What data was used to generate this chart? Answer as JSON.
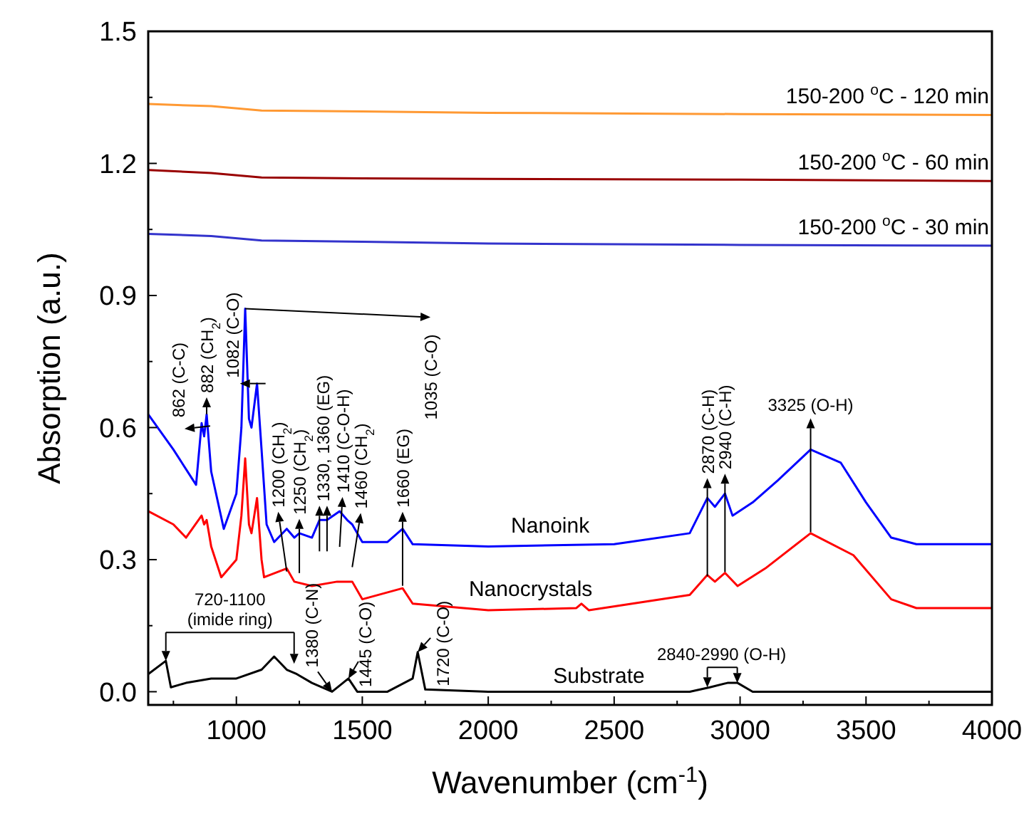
{
  "chart_data": {
    "type": "line",
    "xlabel": "Wavenumber (cm$^{-1}$)",
    "ylabel": "Absorption (a.u.)",
    "xlim": [
      650,
      4000
    ],
    "ylim": [
      -0.03,
      1.5
    ],
    "xticks": [
      1000,
      1500,
      2000,
      2500,
      3000,
      3500,
      4000
    ],
    "yticks": [
      {
        "value": 0,
        "label": "0.0"
      },
      0.3,
      0.6,
      0.9,
      1.2,
      1.5
    ],
    "grid": false,
    "marker": "none",
    "line_style": "solid",
    "series": [
      {
        "name": "150-200 $^{o}$C - 120 min",
        "color": "#ff9933",
        "x": [
          650,
          900,
          1100,
          1500,
          2000,
          3000,
          4000
        ],
        "values": [
          1.335,
          1.33,
          1.32,
          1.318,
          1.315,
          1.312,
          1.31
        ]
      },
      {
        "name": "150-200 $^{o}$C - 60 min",
        "color": "#990000",
        "x": [
          650,
          900,
          1100,
          1500,
          2000,
          3000,
          4000
        ],
        "values": [
          1.185,
          1.178,
          1.168,
          1.166,
          1.165,
          1.163,
          1.16
        ]
      },
      {
        "name": "150-200 $^{o}$C - 30 min",
        "color": "#3333cc",
        "x": [
          650,
          900,
          1100,
          1500,
          2000,
          3000,
          4000
        ],
        "values": [
          1.04,
          1.035,
          1.025,
          1.022,
          1.018,
          1.015,
          1.013
        ]
      },
      {
        "name": "Nanoink",
        "color": "#0000ff",
        "x": [
          650,
          750,
          840,
          862,
          872,
          882,
          900,
          950,
          1000,
          1020,
          1035,
          1050,
          1060,
          1082,
          1100,
          1120,
          1150,
          1200,
          1230,
          1250,
          1300,
          1330,
          1360,
          1410,
          1440,
          1460,
          1500,
          1600,
          1660,
          1700,
          2000,
          2500,
          2800,
          2870,
          2900,
          2940,
          2970,
          3050,
          3150,
          3280,
          3400,
          3500,
          3600,
          3700,
          4000
        ],
        "values": [
          0.63,
          0.55,
          0.47,
          0.61,
          0.58,
          0.63,
          0.5,
          0.37,
          0.45,
          0.6,
          0.87,
          0.62,
          0.6,
          0.7,
          0.55,
          0.38,
          0.34,
          0.37,
          0.35,
          0.36,
          0.35,
          0.39,
          0.39,
          0.41,
          0.39,
          0.38,
          0.34,
          0.34,
          0.37,
          0.335,
          0.33,
          0.335,
          0.36,
          0.44,
          0.42,
          0.45,
          0.4,
          0.43,
          0.48,
          0.55,
          0.52,
          0.43,
          0.35,
          0.335,
          0.335
        ]
      },
      {
        "name": "Nanocrystals",
        "color": "#ff0000",
        "x": [
          650,
          750,
          800,
          862,
          872,
          882,
          900,
          940,
          1000,
          1020,
          1035,
          1050,
          1060,
          1082,
          1100,
          1110,
          1200,
          1230,
          1300,
          1400,
          1460,
          1500,
          1660,
          1700,
          2000,
          2350,
          2370,
          2400,
          2800,
          2870,
          2900,
          2940,
          2990,
          3100,
          3280,
          3450,
          3600,
          3700,
          4000
        ],
        "values": [
          0.41,
          0.38,
          0.35,
          0.4,
          0.38,
          0.39,
          0.33,
          0.26,
          0.3,
          0.4,
          0.53,
          0.38,
          0.36,
          0.44,
          0.3,
          0.26,
          0.28,
          0.25,
          0.24,
          0.25,
          0.25,
          0.21,
          0.235,
          0.2,
          0.185,
          0.19,
          0.2,
          0.185,
          0.22,
          0.265,
          0.25,
          0.27,
          0.24,
          0.28,
          0.36,
          0.31,
          0.21,
          0.19,
          0.19
        ]
      },
      {
        "name": "Substrate",
        "color": "#000000",
        "x": [
          650,
          720,
          740,
          800,
          900,
          1000,
          1100,
          1150,
          1200,
          1240,
          1300,
          1380,
          1445,
          1480,
          1600,
          1700,
          1720,
          1750,
          2000,
          2800,
          2880,
          2950,
          2990,
          3050,
          4000
        ],
        "values": [
          0.04,
          0.07,
          0.01,
          0.02,
          0.03,
          0.03,
          0.05,
          0.08,
          0.05,
          0.04,
          0.02,
          0.0,
          0.03,
          0.0,
          0.0,
          0.03,
          0.09,
          0.005,
          0.0,
          0.0,
          0.01,
          0.02,
          0.02,
          0.0,
          0.0
        ]
      }
    ],
    "annotations": [
      {
        "text": "862 (C-C)",
        "x": 862,
        "y": 0.61
      },
      {
        "text": "882 (CH$_{2}$)",
        "x": 882,
        "y": 0.63
      },
      {
        "text": "1082 (C-O)",
        "x": 1082,
        "y": 0.7
      },
      {
        "text": "1035 (C-O)",
        "x": 1035,
        "y": 0.87
      },
      {
        "text": "1200 (CH$_{2}$)",
        "x": 1200,
        "y": 0.37
      },
      {
        "text": "1250 (CH$_{2}$)",
        "x": 1250,
        "y": 0.36
      },
      {
        "text": "1330, 1360 (EG)",
        "x": 1330,
        "y": 0.39
      },
      {
        "text": "1410 (C-O-H)",
        "x": 1410,
        "y": 0.41
      },
      {
        "text": "1460 (CH$_{2}$)",
        "x": 1460,
        "y": 0.38
      },
      {
        "text": "1660 (EG)",
        "x": 1660,
        "y": 0.37
      },
      {
        "text": "2870 (C-H)",
        "x": 2870,
        "y": 0.44
      },
      {
        "text": "2940 (C-H)",
        "x": 2940,
        "y": 0.45
      },
      {
        "text": "3325 (O-H)",
        "x": 3280,
        "y": 0.55
      },
      {
        "text": "720-1100 (imide ring)",
        "x": 720,
        "y": 0.07
      },
      {
        "text": "1380 (C-N)",
        "x": 1380,
        "y": 0.0
      },
      {
        "text": "1445 (C-O)",
        "x": 1445,
        "y": 0.03
      },
      {
        "text": "1720 (C-O)",
        "x": 1720,
        "y": 0.09
      },
      {
        "text": "2840-2990 (O-H)",
        "x": 2870,
        "y": 0.01
      }
    ]
  }
}
